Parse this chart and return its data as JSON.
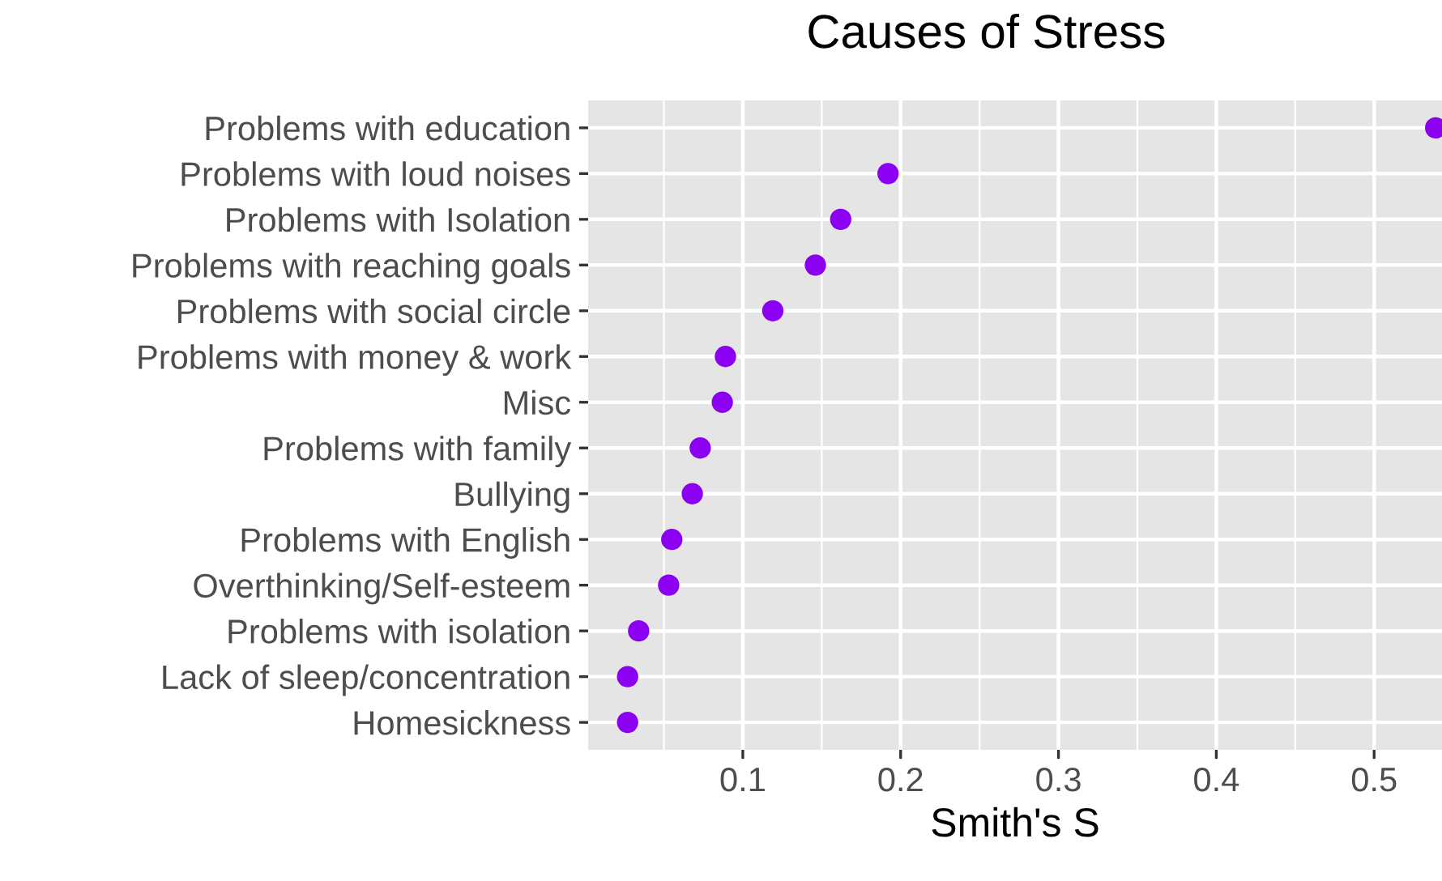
{
  "chart_data": {
    "type": "scatter",
    "title": "Causes of Stress",
    "xlabel": "Smith's S",
    "categories": [
      "Problems with education",
      "Problems with loud noises",
      "Problems with Isolation",
      "Problems with reaching goals",
      "Problems with social circle",
      "Problems with money & work",
      "Misc",
      "Problems with family",
      "Bullying",
      "Problems with English",
      "Overthinking/Self-esteem",
      "Problems with isolation",
      "Lack of sleep/concentration",
      "Homesickness"
    ],
    "orientation": "horizontal",
    "series": [
      {
        "color": "#8b00f0",
        "values": [
          0.539,
          0.192,
          0.162,
          0.146,
          0.119,
          0.089,
          0.087,
          0.073,
          0.068,
          0.055,
          0.053,
          0.034,
          0.027,
          0.027
        ]
      }
    ],
    "xlim": [
      0.002,
      0.543
    ],
    "xticks": [
      0.1,
      0.2,
      0.3,
      0.4,
      0.5
    ],
    "grid": true,
    "marker": "circle"
  }
}
